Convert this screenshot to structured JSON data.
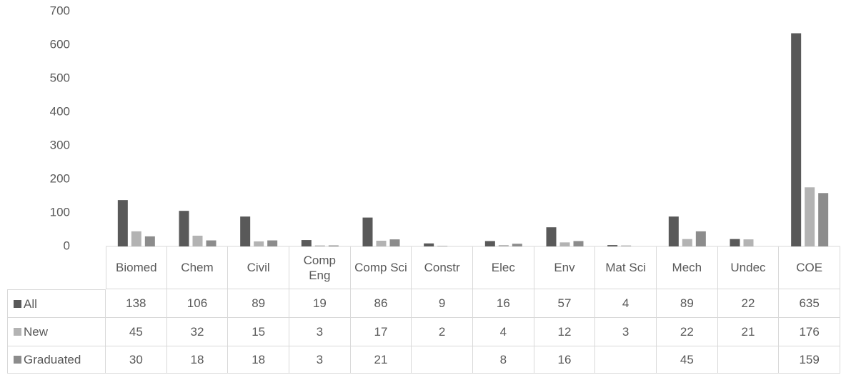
{
  "chart_data": {
    "type": "bar",
    "categories": [
      "Biomed",
      "Chem",
      "Civil",
      "Comp Eng",
      "Comp Sci",
      "Constr",
      "Elec",
      "Env",
      "Mat Sci",
      "Mech",
      "Undec",
      "COE"
    ],
    "series": [
      {
        "name": "All",
        "color": "#595959",
        "values": [
          138,
          106,
          89,
          19,
          86,
          9,
          16,
          57,
          4,
          89,
          22,
          635
        ]
      },
      {
        "name": "New",
        "color": "#b3b3b3",
        "values": [
          45,
          32,
          15,
          3,
          17,
          2,
          4,
          12,
          3,
          22,
          21,
          176
        ]
      },
      {
        "name": "Graduated",
        "color": "#8c8c8c",
        "values": [
          30,
          18,
          18,
          3,
          21,
          null,
          8,
          16,
          null,
          45,
          null,
          159
        ]
      }
    ],
    "ylim": [
      0,
      700
    ],
    "yticks": [
      0,
      100,
      200,
      300,
      400,
      500,
      600,
      700
    ],
    "grid": false
  }
}
